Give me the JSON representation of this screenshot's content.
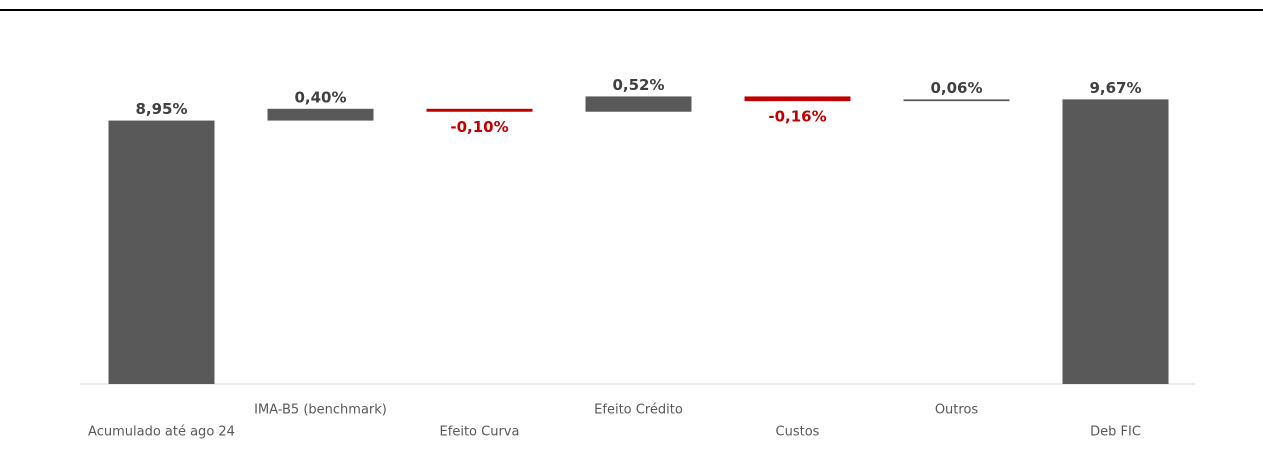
{
  "chart_data": {
    "type": "waterfall",
    "categories": [
      "Acumulado até ago 24",
      "IMA-B5 (benchmark)",
      "Efeito Curva",
      "Efeito Crédito",
      "Custos",
      "Outros",
      "Deb FIC"
    ],
    "values": [
      8.95,
      0.4,
      -0.1,
      0.52,
      -0.16,
      0.06,
      9.67
    ],
    "value_labels": [
      "8,95%",
      "0,40%",
      "-0,10%",
      "0,52%",
      "-0,16%",
      "0,06%",
      "9,67%"
    ],
    "color": "#595959",
    "negative_color": "#c00000"
  }
}
